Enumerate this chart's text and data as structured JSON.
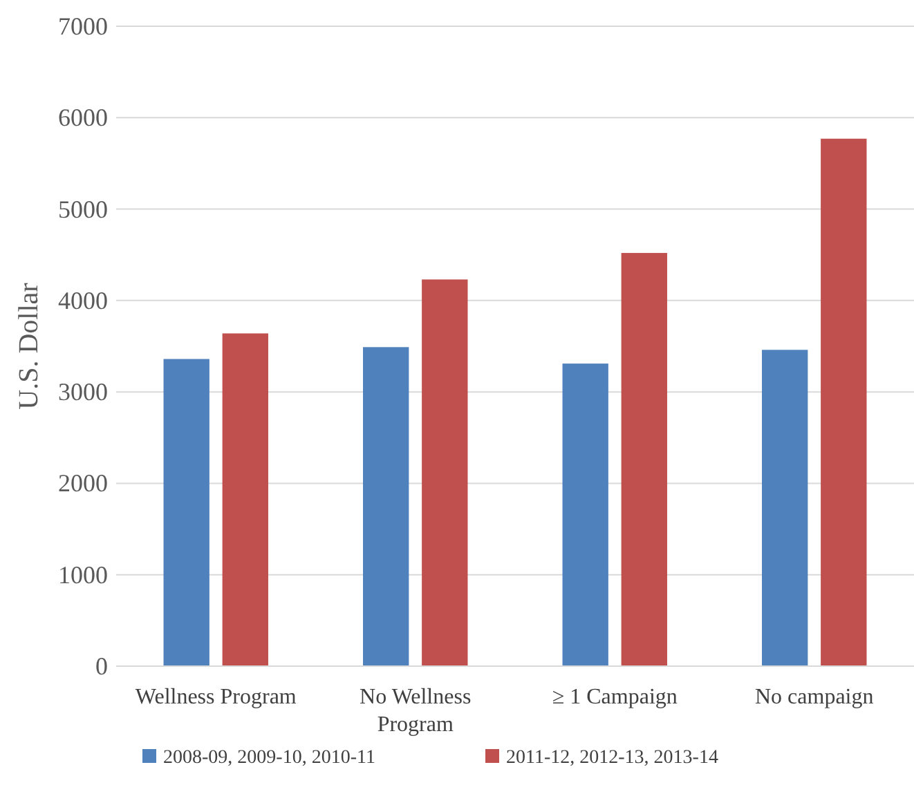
{
  "chart_data": {
    "type": "bar",
    "ylabel": "U.S. Dollar",
    "categories": [
      "Wellness Program",
      "No Wellness Program",
      "≥ 1 Campaign",
      "No campaign"
    ],
    "series": [
      {
        "name": "2008-09, 2009-10, 2010-11",
        "color": "#4f81bd",
        "values": [
          3360,
          3490,
          3310,
          3460
        ]
      },
      {
        "name": "2011-12, 2012-13, 2013-14",
        "color": "#c0504d",
        "values": [
          3640,
          4230,
          4520,
          5770
        ]
      }
    ],
    "ylim": [
      0,
      7000
    ],
    "yticks": [
      0,
      1000,
      2000,
      3000,
      4000,
      5000,
      6000,
      7000
    ],
    "grid": "y",
    "legend": "bottom"
  }
}
